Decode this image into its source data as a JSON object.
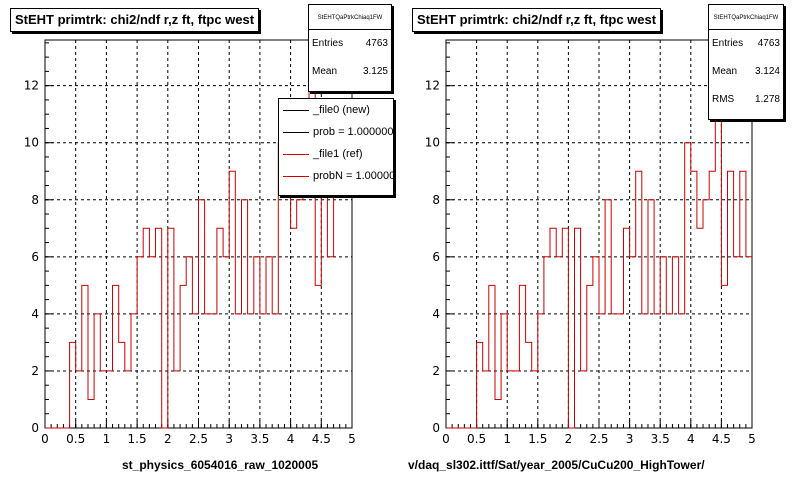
{
  "chart_data": [
    {
      "type": "histogram",
      "title": "StEHT primtrk: chi2/ndf r,z ft, ftpc west",
      "xlim": [
        0,
        5
      ],
      "ylim": [
        0,
        13.6
      ],
      "x_ticks": [
        "0",
        "0.5",
        "1",
        "1.5",
        "2",
        "2.5",
        "3",
        "3.5",
        "4",
        "4.5",
        "5"
      ],
      "y_ticks": [
        "0",
        "2",
        "4",
        "6",
        "8",
        "10",
        "12"
      ],
      "grid": true,
      "bin_width": 0.1,
      "bin_start": 0,
      "series": [
        {
          "name": "_file1 (ref)",
          "color": "#cc0000",
          "values": [
            0,
            0,
            0,
            0,
            3,
            2,
            5,
            1,
            4,
            2,
            2,
            5,
            3,
            2,
            4,
            6,
            7,
            6,
            7,
            0,
            7,
            2,
            5,
            6,
            4,
            8,
            4,
            4,
            7,
            6,
            9,
            4,
            8,
            4,
            6,
            4,
            6,
            4,
            10,
            9,
            7,
            8,
            9,
            13,
            5,
            9,
            6,
            9
          ]
        }
      ],
      "stats": {
        "name": "StEHTQaPtrkChiaq1FW",
        "entries_label": "Entries",
        "entries": "4763",
        "mean_label": "Mean",
        "mean": "3.125"
      },
      "legend": [
        {
          "label": "_file0 (new)",
          "color": "#000000"
        },
        {
          "label": "prob = 1.000000",
          "color": "#000000"
        },
        {
          "label": "_file1 (ref)",
          "color": "#cc0000"
        },
        {
          "label": "probN = 1.000000",
          "color": "#cc0000"
        }
      ],
      "footer": "st_physics_6054016_raw_1020005"
    },
    {
      "type": "histogram",
      "title": "StEHT primtrk: chi2/ndf r,z ft, ftpc west",
      "xlim": [
        0,
        5
      ],
      "ylim": [
        0,
        13.6
      ],
      "x_ticks": [
        "0",
        "0.5",
        "1",
        "1.5",
        "2",
        "2.5",
        "3",
        "3.5",
        "4",
        "4.5",
        "5"
      ],
      "y_ticks": [
        "0",
        "2",
        "4",
        "6",
        "8",
        "10",
        "12"
      ],
      "grid": true,
      "bin_width": 0.1,
      "bin_start": 0,
      "series": [
        {
          "name": "",
          "color": "#cc0000",
          "values": [
            0,
            0,
            0,
            0,
            0,
            3,
            2,
            5,
            1,
            4,
            2,
            2,
            5,
            3,
            2,
            4,
            6,
            7,
            6,
            7,
            0,
            7,
            2,
            5,
            6,
            4,
            8,
            4,
            4,
            7,
            6,
            9,
            4,
            8,
            4,
            6,
            4,
            6,
            4,
            10,
            9,
            7,
            8,
            9,
            13,
            5,
            9,
            6,
            9,
            6
          ]
        }
      ],
      "stats": {
        "name": "StEHTQaPtrkChiaq1FW",
        "entries_label": "Entries",
        "entries": "4763",
        "mean_label": "Mean",
        "mean": "3.124",
        "rms_label": "RMS",
        "rms": "1.278"
      },
      "footer": "v/daq_sl302.ittf/Sat/year_2005/CuCu200_HighTower/"
    }
  ]
}
